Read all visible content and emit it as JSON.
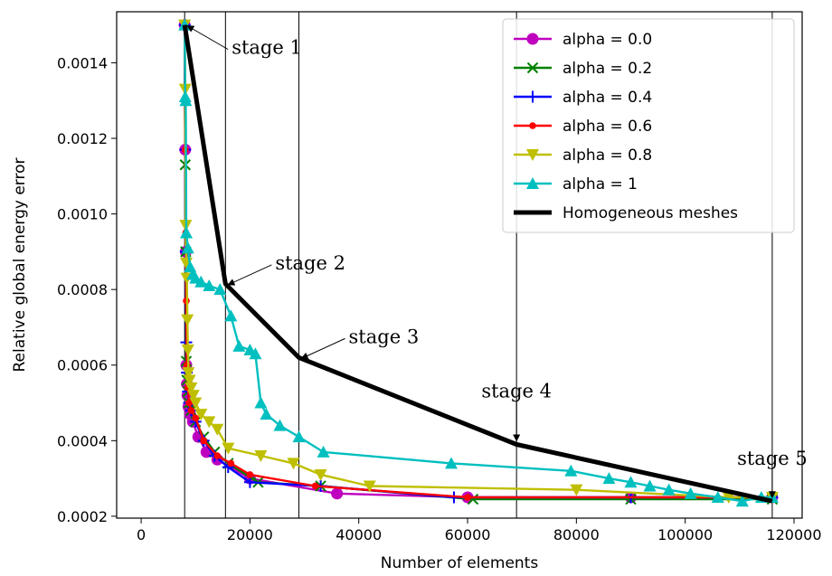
{
  "chart_data": {
    "type": "line",
    "title": "",
    "xlabel": "Number of elements",
    "ylabel": "Relative global energy error",
    "xlim": [
      -4500,
      121500
    ],
    "ylim": [
      0.000195,
      0.001535
    ],
    "xticks": [
      0,
      20000,
      40000,
      60000,
      80000,
      100000,
      120000
    ],
    "yticks": [
      0.0002,
      0.0004,
      0.0006,
      0.0008,
      0.001,
      0.0012,
      0.0014
    ],
    "xtick_labels": [
      "0",
      "20000",
      "40000",
      "60000",
      "80000",
      "100000",
      "120000"
    ],
    "ytick_labels": [
      "0.0002",
      "0.0004",
      "0.0006",
      "0.0008",
      "0.0010",
      "0.0012",
      "0.0014"
    ],
    "grid": false,
    "legend_position": "top-right",
    "series": [
      {
        "name": "alpha = 0.0",
        "color": "#bf00bf",
        "marker": "circle",
        "x": [
          8000,
          8100,
          8200,
          8300,
          8400,
          8500,
          8700,
          9000,
          9500,
          10500,
          12000,
          14000,
          20000,
          36000,
          60000,
          90000,
          116000
        ],
        "y": [
          0.0015,
          0.00117,
          0.0009,
          0.0006,
          0.00055,
          0.00052,
          0.00049,
          0.00047,
          0.00045,
          0.00041,
          0.00037,
          0.00035,
          0.0003,
          0.00026,
          0.00025,
          0.00025,
          0.00025
        ]
      },
      {
        "name": "alpha = 0.2",
        "color": "#008000",
        "marker": "x",
        "x": [
          8000,
          8100,
          8200,
          8300,
          8400,
          8600,
          8800,
          9200,
          10000,
          11500,
          13500,
          16000,
          21500,
          33000,
          61000,
          90000,
          116000
        ],
        "y": [
          0.0015,
          0.00113,
          0.0009,
          0.00061,
          0.00056,
          0.00053,
          0.0005,
          0.00048,
          0.00045,
          0.00041,
          0.00037,
          0.00034,
          0.00029,
          0.00028,
          0.000245,
          0.000245,
          0.000245
        ]
      },
      {
        "name": "alpha = 0.4",
        "color": "#0000ff",
        "marker": "plus",
        "x": [
          8000,
          8100,
          8200,
          8300,
          8400,
          8600,
          8800,
          9200,
          10000,
          11500,
          13500,
          16000,
          20000,
          33000,
          57500,
          90000,
          116000
        ],
        "y": [
          0.0015,
          0.00117,
          0.0009,
          0.00066,
          0.00058,
          0.00053,
          0.0005,
          0.00048,
          0.00045,
          0.0004,
          0.00036,
          0.00033,
          0.00029,
          0.00028,
          0.00025,
          0.00025,
          0.00025
        ]
      },
      {
        "name": "alpha = 0.6",
        "color": "#ff0000",
        "marker": "dot",
        "x": [
          8000,
          8100,
          8200,
          8300,
          8400,
          8600,
          8800,
          9200,
          10000,
          11500,
          14000,
          16500,
          20000,
          32000,
          60000,
          108000,
          116000
        ],
        "y": [
          0.0015,
          0.00117,
          0.00095,
          0.00077,
          0.0006,
          0.00054,
          0.0005,
          0.00048,
          0.00046,
          0.0004,
          0.00036,
          0.00034,
          0.00031,
          0.00028,
          0.00025,
          0.00025,
          0.00025
        ]
      },
      {
        "name": "alpha = 0.8",
        "color": "#bfbf00",
        "marker": "triangle-down",
        "x": [
          8000,
          8100,
          8200,
          8300,
          8400,
          8500,
          8600,
          8700,
          8900,
          9200,
          9600,
          10000,
          11000,
          12500,
          14000,
          16000,
          22000,
          28000,
          33000,
          42000,
          80000,
          108000,
          116000
        ],
        "y": [
          0.0015,
          0.00133,
          0.00097,
          0.00087,
          0.00083,
          0.00072,
          0.00064,
          0.00058,
          0.00056,
          0.00054,
          0.00052,
          0.0005,
          0.00047,
          0.00045,
          0.00043,
          0.00038,
          0.00036,
          0.00034,
          0.00031,
          0.00028,
          0.00027,
          0.00025,
          0.00025
        ]
      },
      {
        "name": "alpha = 1",
        "color": "#00bfbf",
        "marker": "triangle-up",
        "x": [
          8000,
          8100,
          8200,
          8300,
          8600,
          9000,
          9500,
          10000,
          11000,
          12500,
          14500,
          16500,
          18000,
          20000,
          21000,
          22000,
          23000,
          25500,
          29000,
          33500,
          57000,
          79000,
          86000,
          90000,
          93500,
          97000,
          101000,
          106000,
          110500,
          114000,
          116000
        ],
        "y": [
          0.0015,
          0.00131,
          0.0013,
          0.00095,
          0.00091,
          0.00086,
          0.00084,
          0.00083,
          0.00082,
          0.00081,
          0.0008,
          0.00073,
          0.00065,
          0.00064,
          0.00063,
          0.0005,
          0.00047,
          0.00044,
          0.00041,
          0.00037,
          0.00034,
          0.00032,
          0.0003,
          0.00029,
          0.00028,
          0.00027,
          0.00026,
          0.00025,
          0.00024,
          0.00025,
          0.00025
        ]
      },
      {
        "name": "Homogeneous meshes",
        "color": "#000000",
        "marker": "none",
        "x": [
          8000,
          15500,
          29000,
          69000,
          116000
        ],
        "y": [
          0.0015,
          0.000815,
          0.00062,
          0.00039,
          0.00024
        ]
      }
    ],
    "vlines_x": [
      8000,
      15500,
      29000,
      69000,
      116000
    ],
    "annotations": [
      {
        "text": "stage 1",
        "x": 8000,
        "y": 0.0015
      },
      {
        "text": "stage 2",
        "x": 15500,
        "y": 0.000815
      },
      {
        "text": "stage 3",
        "x": 29000,
        "y": 0.00062
      },
      {
        "text": "stage 4",
        "x": 69000,
        "y": 0.00039
      },
      {
        "text": "stage 5",
        "x": 116000,
        "y": 0.00024
      }
    ]
  }
}
